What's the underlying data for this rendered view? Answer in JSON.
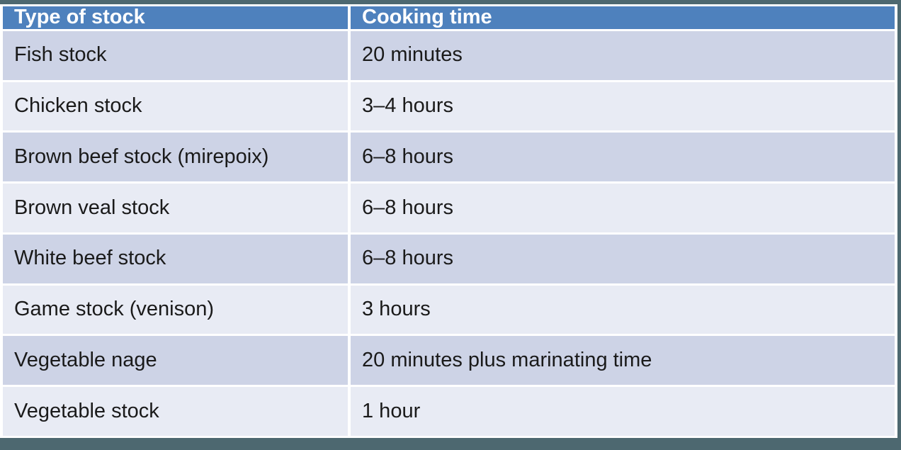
{
  "table": {
    "columns": [
      {
        "label": "Type of stock"
      },
      {
        "label": "Cooking time"
      }
    ],
    "rows": [
      {
        "type": "Fish stock",
        "time": "20 minutes"
      },
      {
        "type": "Chicken stock",
        "time": "3–4 hours"
      },
      {
        "type": "Brown beef stock (mirepoix)",
        "time": "6–8 hours"
      },
      {
        "type": "Brown veal stock",
        "time": "6–8 hours"
      },
      {
        "type": "White beef stock",
        "time": "6–8 hours"
      },
      {
        "type": "Game stock (venison)",
        "time": "3 hours"
      },
      {
        "type": "Vegetable nage",
        "time": "20 minutes plus marinating time"
      },
      {
        "type": "Vegetable stock",
        "time": "1 hour"
      }
    ]
  },
  "colors": {
    "header_bg": "#4e81bd",
    "header_text": "#ffffff",
    "band_dark": "#cdd3e6",
    "band_light": "#e8ebf4",
    "cell_gap": "#ffffff",
    "slide_edge": "#4d6870",
    "body_text": "#1a1a1a"
  },
  "chart_data": {
    "type": "table",
    "title": "",
    "columns": [
      "Type of stock",
      "Cooking time"
    ],
    "rows": [
      [
        "Fish stock",
        "20 minutes"
      ],
      [
        "Chicken stock",
        "3–4 hours"
      ],
      [
        "Brown beef stock (mirepoix)",
        "6–8 hours"
      ],
      [
        "Brown veal stock",
        "6–8 hours"
      ],
      [
        "White beef stock",
        "6–8 hours"
      ],
      [
        "Game stock (venison)",
        "3 hours"
      ],
      [
        "Vegetable nage",
        "20 minutes plus marinating time"
      ],
      [
        "Vegetable stock",
        "1 hour"
      ]
    ]
  }
}
